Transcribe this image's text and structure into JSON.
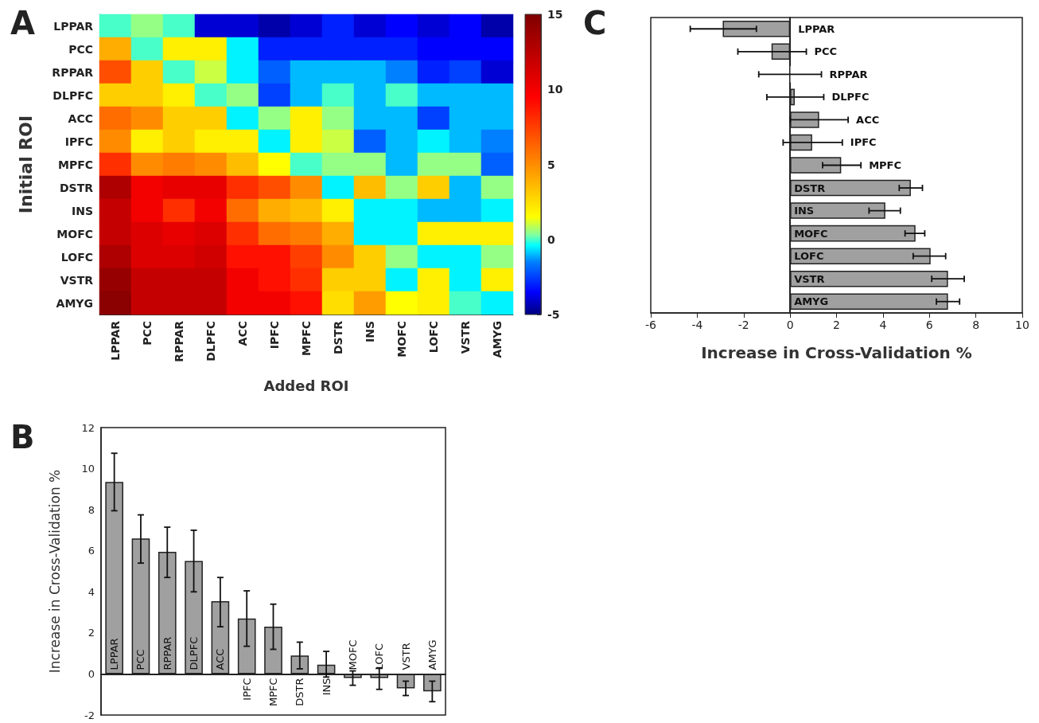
{
  "chart_data": [
    {
      "type": "heatmap",
      "title": "A",
      "xlabel": "Added ROI",
      "ylabel": "Initial ROI",
      "categories": [
        "LPPAR",
        "PCC",
        "RPPAR",
        "DLPFC",
        "ACC",
        "IPFC",
        "MPFC",
        "DSTR",
        "INS",
        "MOFC",
        "LOFC",
        "VSTR",
        "AMYG"
      ],
      "y_categories": [
        "LPPAR",
        "PCC",
        "RPPAR",
        "DLPFC",
        "ACC",
        "IPFC",
        "MPFC",
        "DSTR",
        "INS",
        "MOFC",
        "LOFC",
        "VSTR",
        "AMYG"
      ],
      "cells": [
        [
          0,
          0.5,
          0,
          -4,
          -4,
          -4.5,
          -4,
          -3,
          -4,
          -3.5,
          -4,
          -3.5,
          -4.5
        ],
        [
          4,
          0,
          2,
          2,
          -0.5,
          -3,
          -3,
          -3,
          -3,
          -3,
          -3.5,
          -3.5,
          -3.5
        ],
        [
          7,
          3,
          0,
          1,
          -0.5,
          -2,
          -1,
          -1,
          -1,
          -1.5,
          -3,
          -2.5,
          -4
        ],
        [
          3,
          3,
          2,
          0,
          0.5,
          -2.5,
          -1,
          0,
          -1,
          0,
          -1,
          -1,
          -1
        ],
        [
          6,
          5,
          3,
          3,
          -0.5,
          0.5,
          2,
          0.5,
          -1,
          -1,
          -2.5,
          -1,
          -1
        ],
        [
          5,
          2,
          3,
          2,
          2,
          -0.5,
          2,
          1,
          -2,
          -1,
          -0.5,
          -1,
          -1.5
        ],
        [
          8,
          5,
          5.5,
          5,
          3.5,
          1.5,
          0,
          0.5,
          0.5,
          -1,
          0.5,
          0.5,
          -2
        ],
        [
          13,
          10,
          10.5,
          10.5,
          8,
          7,
          5,
          -0.5,
          3.5,
          0.5,
          3,
          -1,
          0.5
        ],
        [
          12,
          10,
          8,
          10,
          6,
          4,
          3.5,
          2,
          -0.5,
          -0.5,
          -1,
          -1,
          -0.5
        ],
        [
          12,
          11,
          10.5,
          11,
          8,
          6,
          5.5,
          4,
          -0.5,
          -0.5,
          2,
          2,
          2
        ],
        [
          13,
          11,
          11,
          11.5,
          9,
          9,
          7.5,
          5,
          3,
          0.5,
          -0.5,
          -0.5,
          0.5
        ],
        [
          14,
          12,
          12,
          12,
          10,
          9,
          8,
          3,
          3,
          -0.5,
          2,
          -0.5,
          2
        ],
        [
          14.5,
          12,
          12,
          12,
          10,
          10,
          9,
          2.5,
          4.5,
          1.5,
          2,
          0,
          -0.5
        ]
      ],
      "clim": [
        -5,
        15
      ],
      "cticks": [
        -5,
        0,
        5,
        10,
        15
      ]
    },
    {
      "type": "bar",
      "title": "B",
      "ylabel": "Increase in Cross-Validation %",
      "color": "#a0a0a0",
      "categories": [
        "LPPAR",
        "PCC",
        "RPPAR",
        "DLPFC",
        "ACC",
        "IPFC",
        "MPFC",
        "DSTR",
        "INS",
        "MOFC",
        "LOFC",
        "VSTR",
        "AMYG"
      ],
      "values": [
        9.35,
        6.6,
        5.95,
        5.5,
        3.55,
        2.7,
        2.3,
        0.9,
        0.45,
        -0.2,
        -0.2,
        -0.7,
        -0.85
      ],
      "errors": [
        [
          7.95,
          10.75
        ],
        [
          5.4,
          7.75
        ],
        [
          4.7,
          7.15
        ],
        [
          4.0,
          7.0
        ],
        [
          2.3,
          4.7
        ],
        [
          1.35,
          4.05
        ],
        [
          1.2,
          3.4
        ],
        [
          0.25,
          1.55
        ],
        [
          -0.15,
          1.1
        ],
        [
          -0.55,
          0.15
        ],
        [
          -0.75,
          0.3
        ],
        [
          -1.05,
          -0.35
        ],
        [
          -1.35,
          -0.35
        ]
      ],
      "ylim": [
        -2,
        12
      ],
      "yticks": [
        -2,
        0,
        2,
        4,
        6,
        8,
        10,
        12
      ]
    },
    {
      "type": "bar",
      "orientation": "horizontal",
      "title": "C",
      "xlabel": "Increase in Cross-Validation %",
      "color": "#a0a0a0",
      "categories": [
        "LPPAR",
        "PCC",
        "RPPAR",
        "DLPFC",
        "ACC",
        "IPFC",
        "MPFC",
        "DSTR",
        "INS",
        "MOFC",
        "LOFC",
        "VSTR",
        "AMYG"
      ],
      "values": [
        -2.9,
        -0.8,
        0.03,
        0.2,
        1.25,
        0.95,
        2.2,
        5.2,
        4.1,
        5.4,
        6.05,
        6.8,
        6.8
      ],
      "errors": [
        [
          -4.3,
          -1.45
        ],
        [
          -2.25,
          0.7
        ],
        [
          -1.35,
          1.35
        ],
        [
          -1.0,
          1.45
        ],
        [
          0,
          2.5
        ],
        [
          -0.3,
          2.25
        ],
        [
          1.4,
          3.05
        ],
        [
          4.7,
          5.7
        ],
        [
          3.4,
          4.75
        ],
        [
          4.95,
          5.8
        ],
        [
          5.3,
          6.7
        ],
        [
          6.1,
          7.5
        ],
        [
          6.3,
          7.3
        ]
      ],
      "xlim": [
        -6,
        10
      ],
      "xticks": [
        -6,
        -4,
        -2,
        0,
        2,
        4,
        6,
        8,
        10
      ]
    }
  ]
}
